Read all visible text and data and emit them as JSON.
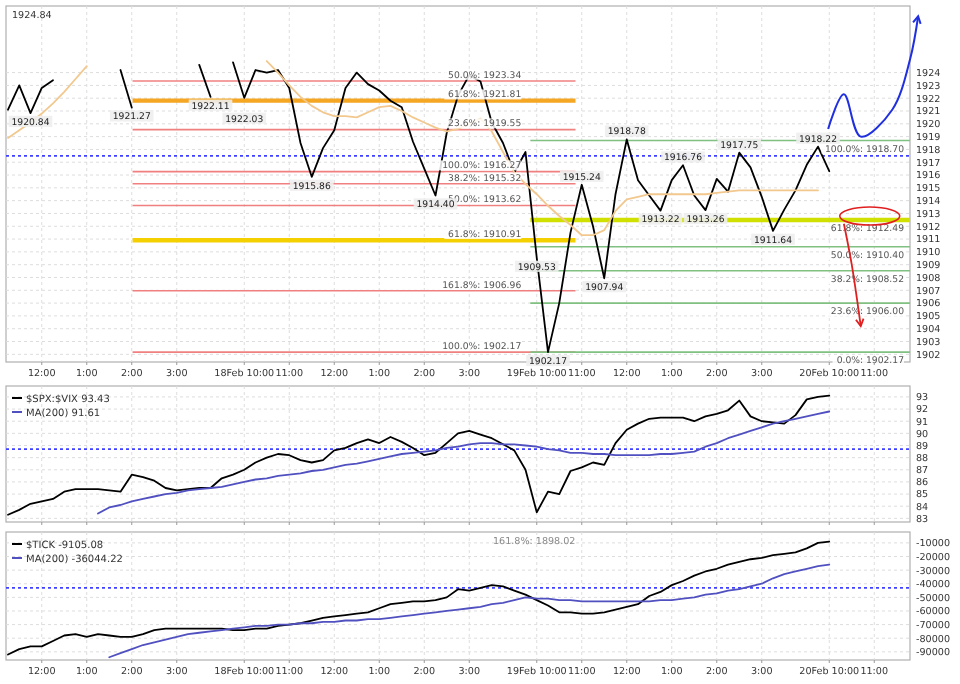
{
  "chart_data": [
    {
      "type": "line",
      "categories": [
        null,
        null,
        null,
        "12:00",
        null,
        null,
        null,
        "1:00",
        null,
        null,
        null,
        "2:00",
        null,
        null,
        null,
        "3:00",
        null,
        null,
        null,
        null,
        null,
        "18Feb 10:00",
        null,
        null,
        null,
        "11:00",
        null,
        null,
        null,
        "12:00",
        null,
        null,
        null,
        "1:00",
        null,
        null,
        null,
        "2:00",
        null,
        null,
        null,
        "3:00",
        null,
        null,
        null,
        null,
        null,
        "19Feb 10:00",
        null,
        null,
        null,
        "11:00",
        null,
        null,
        null,
        "12:00",
        null,
        null,
        null,
        "1:00",
        null,
        null,
        null,
        "2:00",
        null,
        null,
        null,
        "3:00",
        null,
        null,
        null,
        null,
        null,
        "20Feb 10:00",
        null,
        null,
        null,
        "11:00",
        null,
        null,
        null
      ],
      "ylim": [
        1901.4,
        1929.2
      ],
      "yticks": [
        1902,
        1903,
        1904,
        1905,
        1906,
        1907,
        1908,
        1909,
        1910,
        1911,
        1912,
        1913,
        1914,
        1915,
        1916,
        1917,
        1918,
        1919,
        1920,
        1921,
        1922,
        1923,
        1924
      ],
      "grid": true,
      "series": [
        {
          "color": "#000000",
          "values": [
            1921.1,
            1923,
            1920.84,
            1922.8,
            1923.4,
            null,
            null,
            null,
            null,
            null,
            1924.2,
            1921.27,
            null,
            null,
            null,
            null,
            null,
            1924.6,
            1922.11,
            null,
            1924.8,
            1922.03,
            1924.2,
            1924,
            1924.2,
            1922.8,
            1918.5,
            1915.86,
            1918.1,
            1919.5,
            1922.8,
            1924,
            1923.1,
            1922.6,
            1921.8,
            1921.3,
            1918.6,
            1916.5,
            1914.4,
            1919.3,
            1922.2,
            1923.8,
            1923.3,
            1920.1,
            1918.5,
            1916.2,
            1917.8,
            1909.53,
            1902.17,
            1906,
            1911.5,
            1915.24,
            1912,
            1907.94,
            1914.5,
            1918.78,
            1915.6,
            1914.4,
            1913.22,
            1915.6,
            1916.76,
            1914.4,
            1913.26,
            1915.7,
            1914.7,
            1917.75,
            1916.6,
            1914.3,
            1911.64,
            1913.3,
            1914.8,
            1916.8,
            1918.22,
            1916.3,
            null,
            null,
            null,
            null,
            null,
            null,
            null
          ]
        },
        {
          "color": "#f2c88e",
          "values": [
            1918.9,
            1919.5,
            1920.1,
            1920.8,
            1921.6,
            1922.5,
            1923.5,
            1924.5,
            null,
            null,
            null,
            null,
            null,
            null,
            null,
            null,
            null,
            null,
            null,
            null,
            null,
            null,
            null,
            1924.9,
            1924,
            1923,
            1922.1,
            1921.4,
            1920.9,
            1920.6,
            1920.6,
            1920.5,
            1920.9,
            1921.3,
            1921.4,
            1921,
            1920.5,
            1920.1,
            1919.7,
            1919.4,
            1919.6,
            1920,
            1920.4,
            1919.4,
            1917.8,
            1916.2,
            1915.3,
            1914.5,
            1913.6,
            1912.8,
            1912.1,
            1911.3,
            1911.3,
            1911.7,
            1913.2,
            1914.1,
            1914.3,
            1914.5,
            1914.5,
            1914.5,
            1914.5,
            1914.5,
            1914.5,
            1914.6,
            1914.7,
            1914.8,
            1914.8,
            1914.8,
            1914.8,
            1914.8,
            1914.8,
            1914.8,
            1914.8,
            null,
            null,
            null,
            null,
            null,
            null,
            null,
            null
          ]
        }
      ],
      "ref_lines": [
        {
          "axis": "y",
          "value": 1923.34,
          "label": "50.0%: 1923.34",
          "color": "#f08080"
        },
        {
          "axis": "y",
          "value": 1921.81,
          "label": "61.8%: 1921.81",
          "color": "#f5a623"
        },
        {
          "axis": "y",
          "value": 1919.55,
          "label": "23.6%: 1919.55",
          "color": "#f08080"
        },
        {
          "axis": "y",
          "value": 1916.27,
          "label": "100.0%: 1916.27",
          "color": "#f08080"
        },
        {
          "axis": "y",
          "value": 1915.32,
          "label": "38.2%: 1915.32",
          "color": "#f08080"
        },
        {
          "axis": "y",
          "value": 1913.62,
          "label": "50.0%: 1913.62",
          "color": "#f08080"
        },
        {
          "axis": "y",
          "value": 1910.91,
          "label": "61.8%: 1910.91",
          "color": "#f5d000"
        },
        {
          "axis": "y",
          "value": 1906.96,
          "label": "161.8%: 1906.96",
          "color": "#f08080"
        },
        {
          "axis": "y",
          "value": 1902.17,
          "label": "100.0%: 1902.17",
          "color": "#f08080"
        },
        {
          "axis": "y",
          "value": 1918.7,
          "label": "100.0%: 1918.70",
          "color": "#80c080"
        },
        {
          "axis": "y",
          "value": 1912.49,
          "label": "61.8%: 1912.49",
          "color": "#d0e000"
        },
        {
          "axis": "y",
          "value": 1910.4,
          "label": "50.0%: 1910.40",
          "color": "#80c080"
        },
        {
          "axis": "y",
          "value": 1908.52,
          "label": "38.2%: 1908.52",
          "color": "#80c080"
        },
        {
          "axis": "y",
          "value": 1906,
          "label": "23.6%: 1906.00",
          "color": "#80c080"
        },
        {
          "axis": "y",
          "value": 1902.17,
          "label": "0.0%: 1902.17",
          "color": "#80c080"
        },
        {
          "axis": "y",
          "value": 1917.5,
          "color": "#4040ff",
          "line_style": "dotted"
        }
      ],
      "annotations": [
        "1924.84",
        {
          "text": "1920.84",
          "y": 1920.84
        },
        {
          "text": "1921.27",
          "y": 1921.27
        },
        {
          "text": "1922.11",
          "y": 1922.11
        },
        {
          "text": "1922.03",
          "y": 1922.03
        },
        {
          "text": "1915.86",
          "y": 1915.86
        },
        {
          "text": "1914.40",
          "y": 1914.4
        },
        {
          "text": "1909.53",
          "y": 1909.53
        },
        {
          "text": "1902.17",
          "y": 1902.17
        },
        {
          "text": "1915.24",
          "y": 1915.24
        },
        {
          "text": "1907.94",
          "y": 1907.94
        },
        {
          "text": "1918.78",
          "y": 1918.78
        },
        {
          "text": "1913.22",
          "y": 1913.22
        },
        {
          "text": "1916.76",
          "y": 1916.76
        },
        {
          "text": "1913.26",
          "y": 1913.26
        },
        {
          "text": "1917.75",
          "y": 1917.75
        },
        {
          "text": "1911.64",
          "y": 1911.64
        },
        {
          "text": "1918.22",
          "y": 1918.22
        }
      ]
    },
    {
      "type": "line",
      "tick_labels": "y",
      "categories": [
        null,
        null,
        null,
        null,
        null,
        null,
        null,
        null,
        null,
        null,
        null,
        null,
        null,
        null,
        null,
        null,
        null,
        null,
        null,
        null,
        null,
        null,
        null,
        null,
        null,
        null,
        null,
        null,
        null,
        null,
        null,
        null,
        null,
        null,
        null,
        null,
        null,
        null,
        null,
        null,
        null,
        null,
        null,
        null,
        null,
        null,
        null,
        null,
        null,
        null,
        null,
        null,
        null,
        null,
        null,
        null,
        null,
        null,
        null,
        null,
        null,
        null,
        null,
        null,
        null,
        null,
        null,
        null,
        null,
        null,
        null,
        null,
        null,
        null,
        null,
        null,
        null,
        null,
        null,
        null,
        null
      ],
      "ylim": [
        82.7,
        93.9
      ],
      "yticks": [
        83,
        84,
        85,
        86,
        87,
        88,
        89,
        90,
        91,
        92,
        93
      ],
      "grid": true,
      "legend": "top left",
      "series": [
        {
          "name": "$SPX:$VIX 93.43",
          "color": "#000000",
          "values": [
            83.3,
            83.7,
            84.2,
            84.4,
            84.6,
            85.2,
            85.4,
            85.4,
            85.4,
            85.3,
            85.2,
            86.6,
            86.4,
            86.1,
            85.5,
            85.3,
            85.4,
            85.5,
            85.5,
            86.3,
            86.6,
            87,
            87.6,
            88,
            88.3,
            88.2,
            87.8,
            87.6,
            87.8,
            88.6,
            88.8,
            89.2,
            89.5,
            89.2,
            89.7,
            89.3,
            88.8,
            88.2,
            88.4,
            89.2,
            90,
            90.2,
            89.9,
            89.6,
            89.1,
            88.6,
            87,
            83.5,
            85.2,
            85,
            86.9,
            87.2,
            87.6,
            87.4,
            89.2,
            90.3,
            90.8,
            91.2,
            91.3,
            91.3,
            91.3,
            91,
            91.4,
            91.6,
            91.9,
            92.7,
            91.4,
            91,
            90.9,
            90.8,
            91.5,
            92.8,
            93,
            93.1,
            null,
            null,
            null,
            null,
            null,
            null,
            null
          ]
        },
        {
          "name": "MA(200) 91.61",
          "color": "#5050c0",
          "values": [
            null,
            null,
            null,
            null,
            null,
            null,
            null,
            null,
            83.4,
            83.9,
            84.1,
            84.4,
            84.6,
            84.8,
            85,
            85.1,
            85.3,
            85.4,
            85.5,
            85.6,
            85.8,
            86,
            86.2,
            86.3,
            86.5,
            86.6,
            86.7,
            86.9,
            87,
            87.2,
            87.4,
            87.5,
            87.7,
            87.9,
            88.1,
            88.3,
            88.4,
            88.5,
            88.6,
            88.8,
            88.9,
            89.1,
            89.2,
            89.2,
            89.1,
            89.1,
            89,
            88.9,
            88.7,
            88.6,
            88.4,
            88.4,
            88.3,
            88.3,
            88.2,
            88.2,
            88.2,
            88.2,
            88.3,
            88.3,
            88.4,
            88.5,
            88.9,
            89.2,
            89.6,
            89.9,
            90.2,
            90.5,
            90.8,
            91,
            91.2,
            91.4,
            91.6,
            91.8,
            null,
            null,
            null,
            null,
            null,
            null,
            null
          ]
        }
      ],
      "ref_lines": [
        {
          "axis": "y",
          "value": 88.7,
          "color": "#4040ff",
          "line_style": "dotted"
        }
      ]
    },
    {
      "type": "line",
      "categories": [
        null,
        null,
        null,
        "12:00",
        null,
        null,
        null,
        "1:00",
        null,
        null,
        null,
        "2:00",
        null,
        null,
        null,
        "3:00",
        null,
        null,
        null,
        null,
        null,
        "18Feb 10:00",
        null,
        null,
        null,
        "11:00",
        null,
        null,
        null,
        "12:00",
        null,
        null,
        null,
        "1:00",
        null,
        null,
        null,
        "2:00",
        null,
        null,
        null,
        "3:00",
        null,
        null,
        null,
        null,
        null,
        "19Feb 10:00",
        null,
        null,
        null,
        "11:00",
        null,
        null,
        null,
        "12:00",
        null,
        null,
        null,
        "1:00",
        null,
        null,
        null,
        "2:00",
        null,
        null,
        null,
        "3:00",
        null,
        null,
        null,
        null,
        null,
        "20Feb 10:00",
        null,
        null,
        null,
        "11:00",
        null,
        null,
        null
      ],
      "ylim": [
        -96000,
        -2000
      ],
      "yticks": [
        -10000,
        -20000,
        -30000,
        -40000,
        -50000,
        -60000,
        -70000,
        -80000,
        -90000
      ],
      "grid": true,
      "legend": "top left",
      "series": [
        {
          "name": "$TICK -9105.08",
          "color": "#000000",
          "values": [
            -92000,
            -88000,
            -86000,
            -86000,
            -82000,
            -78000,
            -77000,
            -79000,
            -77000,
            -78000,
            -79000,
            -79000,
            -77000,
            -74000,
            -73000,
            -73000,
            -73000,
            -73000,
            -73000,
            -73000,
            -74000,
            -74000,
            -73000,
            -73000,
            -71000,
            -70000,
            -69000,
            -67000,
            -65000,
            -64000,
            -63000,
            -62000,
            -61000,
            -58000,
            -55000,
            -54000,
            -53000,
            -53000,
            -52000,
            -50000,
            -44000,
            -45000,
            -43000,
            -41000,
            -42000,
            -45000,
            -48000,
            -52000,
            -56000,
            -61000,
            -61000,
            -62000,
            -62000,
            -61000,
            -59000,
            -57000,
            -55000,
            -49000,
            -46000,
            -41000,
            -38000,
            -34000,
            -31000,
            -29000,
            -26000,
            -24000,
            -22000,
            -21000,
            -19000,
            -18000,
            -17000,
            -14000,
            -10000,
            -9000,
            null,
            null,
            null,
            null,
            null,
            null,
            null
          ]
        },
        {
          "name": "MA(200) -36044.22",
          "color": "#5050c0",
          "values": [
            null,
            null,
            null,
            null,
            null,
            null,
            null,
            null,
            null,
            -94000,
            -91000,
            -88000,
            -85000,
            -83000,
            -81000,
            -79000,
            -77000,
            -76000,
            -75000,
            -74000,
            -73000,
            -72000,
            -71000,
            -71000,
            -70000,
            -70000,
            -69000,
            -69000,
            -68000,
            -68000,
            -67000,
            -67000,
            -66000,
            -66000,
            -65000,
            -64000,
            -63000,
            -62000,
            -61000,
            -60000,
            -59000,
            -58000,
            -57000,
            -55000,
            -54000,
            -52000,
            -50000,
            -51000,
            -51000,
            -52000,
            -52000,
            -53000,
            -53000,
            -53000,
            -53000,
            -53000,
            -53000,
            -53000,
            -52000,
            -52000,
            -51000,
            -50000,
            -48000,
            -47000,
            -45000,
            -44000,
            -42000,
            -40000,
            -36000,
            -33000,
            -31000,
            -29000,
            -27000,
            -26000,
            null,
            null,
            null,
            null,
            null,
            null,
            null
          ]
        }
      ],
      "ref_lines": [
        {
          "axis": "y",
          "value": -43000,
          "color": "#4040ff",
          "line_style": "dotted"
        }
      ],
      "annotations": [
        "161.8%: 1898.02"
      ]
    }
  ]
}
